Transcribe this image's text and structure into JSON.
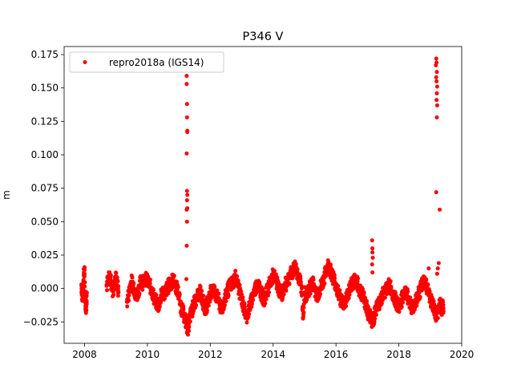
{
  "chart_data": {
    "type": "scatter",
    "title": "P346 V",
    "xlabel": "",
    "ylabel": "m",
    "xlim": [
      2007.35,
      2020.0
    ],
    "ylim": [
      -0.041,
      0.181
    ],
    "xticks": [
      2008,
      2010,
      2012,
      2014,
      2016,
      2018,
      2020
    ],
    "xtick_labels": [
      "2008",
      "2010",
      "2012",
      "2014",
      "2016",
      "2018",
      "2020"
    ],
    "yticks": [
      -0.025,
      0.0,
      0.025,
      0.05,
      0.075,
      0.1,
      0.125,
      0.15,
      0.175
    ],
    "ytick_labels": [
      "−0.025",
      "0.000",
      "0.025",
      "0.050",
      "0.075",
      "0.100",
      "0.125",
      "0.150",
      "0.175"
    ],
    "legend": {
      "position": "upper-left",
      "entries": [
        "repro2018a (IGS14)"
      ]
    },
    "grid": false,
    "series": [
      {
        "name": "repro2018a (IGS14)",
        "color": "#ff0000",
        "marker": "circle",
        "points": [
          [
            2007.9,
            0.003
          ],
          [
            2007.92,
            -0.004
          ],
          [
            2007.94,
            -0.006
          ],
          [
            2007.96,
            0.001
          ],
          [
            2007.98,
            0.012
          ],
          [
            2008.0,
            0.011
          ],
          [
            2008.02,
            -0.008
          ],
          [
            2008.04,
            -0.012
          ],
          [
            2008.05,
            -0.014
          ],
          [
            2008.06,
            -0.009
          ],
          [
            2008.07,
            -0.003
          ],
          [
            2008.7,
            0.002
          ],
          [
            2008.75,
            0.006
          ],
          [
            2008.8,
            0.008
          ],
          [
            2008.85,
            0.004
          ],
          [
            2008.9,
            -0.002
          ],
          [
            2008.95,
            0.003
          ],
          [
            2009.0,
            0.009
          ],
          [
            2009.05,
            0.002
          ],
          [
            2009.08,
            -0.003
          ],
          [
            2009.35,
            -0.01
          ],
          [
            2009.4,
            -0.005
          ],
          [
            2009.45,
            0.002
          ],
          [
            2009.5,
            0.005
          ],
          [
            2009.55,
            0.003
          ],
          [
            2009.6,
            -0.002
          ],
          [
            2009.65,
            -0.006
          ],
          [
            2009.7,
            -0.003
          ],
          [
            2009.75,
            0.002
          ],
          [
            2009.8,
            0.006
          ],
          [
            2009.85,
            0.004
          ],
          [
            2009.9,
            0.008
          ],
          [
            2009.95,
            0.007
          ],
          [
            2010.0,
            0.005
          ],
          [
            2010.05,
            0.003
          ],
          [
            2010.1,
            0.001
          ],
          [
            2010.15,
            -0.002
          ],
          [
            2010.2,
            -0.006
          ],
          [
            2010.25,
            -0.009
          ],
          [
            2010.3,
            -0.011
          ],
          [
            2010.35,
            -0.013
          ],
          [
            2010.4,
            -0.009
          ],
          [
            2010.45,
            -0.005
          ],
          [
            2010.5,
            -0.002
          ],
          [
            2010.55,
            -0.004
          ],
          [
            2010.6,
            -0.001
          ],
          [
            2010.65,
            0.001
          ],
          [
            2010.7,
            0.003
          ],
          [
            2010.75,
            0.004
          ],
          [
            2010.8,
            0.006
          ],
          [
            2010.85,
            0.005
          ],
          [
            2010.9,
            0.002
          ],
          [
            2010.95,
            -0.001
          ],
          [
            2011.0,
            -0.005
          ],
          [
            2011.05,
            -0.012
          ],
          [
            2011.1,
            -0.016
          ],
          [
            2011.15,
            -0.019
          ],
          [
            2011.2,
            -0.023
          ],
          [
            2011.24,
            -0.027
          ],
          [
            2011.28,
            -0.03
          ],
          [
            2011.32,
            -0.026
          ],
          [
            2011.36,
            -0.021
          ],
          [
            2011.4,
            -0.018
          ],
          [
            2011.44,
            -0.015
          ],
          [
            2011.48,
            -0.012
          ],
          [
            2011.52,
            -0.01
          ],
          [
            2011.56,
            -0.008
          ],
          [
            2011.6,
            -0.006
          ],
          [
            2011.64,
            -0.004
          ],
          [
            2011.68,
            -0.003
          ],
          [
            2011.72,
            -0.005
          ],
          [
            2011.76,
            -0.009
          ],
          [
            2011.8,
            -0.012
          ],
          [
            2011.84,
            -0.015
          ],
          [
            2011.88,
            -0.013
          ],
          [
            2011.92,
            -0.01
          ],
          [
            2011.96,
            -0.007
          ],
          [
            2012.0,
            -0.004
          ],
          [
            2012.05,
            -0.002
          ],
          [
            2012.1,
            0.0
          ],
          [
            2012.15,
            -0.003
          ],
          [
            2012.2,
            -0.006
          ],
          [
            2012.25,
            -0.008
          ],
          [
            2012.3,
            -0.012
          ],
          [
            2012.35,
            -0.016
          ],
          [
            2012.4,
            -0.013
          ],
          [
            2012.45,
            -0.009
          ],
          [
            2012.5,
            -0.006
          ],
          [
            2012.55,
            -0.002
          ],
          [
            2012.6,
            0.001
          ],
          [
            2012.65,
            0.003
          ],
          [
            2012.7,
            0.004
          ],
          [
            2012.75,
            0.006
          ],
          [
            2012.8,
            0.009
          ],
          [
            2012.85,
            0.005
          ],
          [
            2012.9,
            0.001
          ],
          [
            2012.95,
            -0.004
          ],
          [
            2013.0,
            -0.008
          ],
          [
            2013.05,
            -0.013
          ],
          [
            2013.1,
            -0.017
          ],
          [
            2013.15,
            -0.021
          ],
          [
            2013.2,
            -0.018
          ],
          [
            2013.25,
            -0.014
          ],
          [
            2013.3,
            -0.01
          ],
          [
            2013.35,
            -0.006
          ],
          [
            2013.4,
            -0.002
          ],
          [
            2013.45,
            0.001
          ],
          [
            2013.5,
            0.003
          ],
          [
            2013.55,
            0.002
          ],
          [
            2013.6,
            -0.002
          ],
          [
            2013.65,
            -0.005
          ],
          [
            2013.7,
            -0.008
          ],
          [
            2013.75,
            -0.006
          ],
          [
            2013.8,
            -0.003
          ],
          [
            2013.85,
            0.001
          ],
          [
            2013.9,
            0.004
          ],
          [
            2013.95,
            0.007
          ],
          [
            2014.0,
            0.01
          ],
          [
            2014.05,
            0.008
          ],
          [
            2014.1,
            0.005
          ],
          [
            2014.15,
            0.002
          ],
          [
            2014.2,
            -0.001
          ],
          [
            2014.25,
            -0.004
          ],
          [
            2014.3,
            -0.003
          ],
          [
            2014.35,
            0.0
          ],
          [
            2014.4,
            0.003
          ],
          [
            2014.45,
            0.006
          ],
          [
            2014.5,
            0.008
          ],
          [
            2014.55,
            0.01
          ],
          [
            2014.6,
            0.012
          ],
          [
            2014.65,
            0.014
          ],
          [
            2014.7,
            0.016
          ],
          [
            2014.75,
            0.013
          ],
          [
            2014.8,
            0.01
          ],
          [
            2014.85,
            0.005
          ],
          [
            2014.9,
            0.002
          ],
          [
            2014.95,
            -0.022
          ],
          [
            2015.0,
            -0.003
          ],
          [
            2015.05,
            -0.006
          ],
          [
            2015.1,
            -0.004
          ],
          [
            2015.15,
            -0.001
          ],
          [
            2015.2,
            0.002
          ],
          [
            2015.25,
            0.004
          ],
          [
            2015.3,
            0.002
          ],
          [
            2015.35,
            -0.002
          ],
          [
            2015.4,
            -0.005
          ],
          [
            2015.45,
            -0.003
          ],
          [
            2015.5,
            0.0
          ],
          [
            2015.55,
            0.003
          ],
          [
            2015.6,
            0.006
          ],
          [
            2015.65,
            0.01
          ],
          [
            2015.7,
            0.014
          ],
          [
            2015.75,
            0.017
          ],
          [
            2015.8,
            0.015
          ],
          [
            2015.85,
            0.012
          ],
          [
            2015.9,
            0.009
          ],
          [
            2015.95,
            0.006
          ],
          [
            2016.0,
            0.002
          ],
          [
            2016.05,
            -0.002
          ],
          [
            2016.1,
            -0.005
          ],
          [
            2016.15,
            -0.008
          ],
          [
            2016.2,
            -0.01
          ],
          [
            2016.25,
            -0.012
          ],
          [
            2016.3,
            -0.009
          ],
          [
            2016.35,
            -0.006
          ],
          [
            2016.4,
            -0.003
          ],
          [
            2016.45,
            0.0
          ],
          [
            2016.5,
            0.003
          ],
          [
            2016.55,
            0.005
          ],
          [
            2016.6,
            0.007
          ],
          [
            2016.65,
            0.005
          ],
          [
            2016.7,
            0.002
          ],
          [
            2016.75,
            -0.001
          ],
          [
            2016.8,
            -0.003
          ],
          [
            2016.85,
            -0.005
          ],
          [
            2016.9,
            -0.008
          ],
          [
            2016.95,
            -0.012
          ],
          [
            2017.0,
            -0.016
          ],
          [
            2017.05,
            -0.02
          ],
          [
            2017.1,
            -0.022
          ],
          [
            2017.15,
            -0.025
          ],
          [
            2017.2,
            -0.022
          ],
          [
            2017.25,
            -0.018
          ],
          [
            2017.3,
            -0.015
          ],
          [
            2017.35,
            -0.012
          ],
          [
            2017.4,
            -0.009
          ],
          [
            2017.45,
            -0.006
          ],
          [
            2017.5,
            -0.004
          ],
          [
            2017.55,
            -0.002
          ],
          [
            2017.6,
            -0.001
          ],
          [
            2017.65,
            0.001
          ],
          [
            2017.7,
            0.002
          ],
          [
            2017.75,
            0.0
          ],
          [
            2017.8,
            -0.003
          ],
          [
            2017.85,
            -0.006
          ],
          [
            2017.9,
            -0.009
          ],
          [
            2017.95,
            -0.012
          ],
          [
            2018.0,
            -0.014
          ],
          [
            2018.05,
            -0.011
          ],
          [
            2018.1,
            -0.008
          ],
          [
            2018.15,
            -0.005
          ],
          [
            2018.2,
            -0.003
          ],
          [
            2018.25,
            -0.004
          ],
          [
            2018.3,
            -0.007
          ],
          [
            2018.35,
            -0.01
          ],
          [
            2018.4,
            -0.013
          ],
          [
            2018.45,
            -0.015
          ],
          [
            2018.5,
            -0.012
          ],
          [
            2018.55,
            -0.009
          ],
          [
            2018.6,
            -0.006
          ],
          [
            2018.65,
            -0.003
          ],
          [
            2018.7,
            0.0
          ],
          [
            2018.75,
            0.003
          ],
          [
            2018.8,
            0.005
          ],
          [
            2018.85,
            0.003
          ],
          [
            2018.9,
            0.0
          ],
          [
            2018.95,
            -0.004
          ],
          [
            2019.0,
            -0.008
          ],
          [
            2019.05,
            -0.011
          ],
          [
            2019.1,
            -0.014
          ],
          [
            2019.15,
            -0.018
          ],
          [
            2019.2,
            -0.022
          ],
          [
            2019.25,
            -0.016
          ],
          [
            2019.3,
            -0.012
          ],
          [
            2019.35,
            -0.015
          ],
          [
            2019.4,
            -0.013
          ],
          [
            2019.42,
            -0.017
          ]
        ],
        "outliers": [
          [
            2011.25,
            0.159
          ],
          [
            2011.25,
            0.153
          ],
          [
            2011.26,
            0.138
          ],
          [
            2011.26,
            0.128
          ],
          [
            2011.27,
            0.118
          ],
          [
            2011.27,
            0.117
          ],
          [
            2011.25,
            0.101
          ],
          [
            2011.26,
            0.073
          ],
          [
            2011.27,
            0.07
          ],
          [
            2011.26,
            0.066
          ],
          [
            2011.27,
            0.06
          ],
          [
            2011.25,
            0.059
          ],
          [
            2011.26,
            0.05
          ],
          [
            2011.25,
            0.032
          ],
          [
            2011.24,
            0.007
          ],
          [
            2017.15,
            0.036
          ],
          [
            2017.16,
            0.03
          ],
          [
            2017.16,
            0.027
          ],
          [
            2017.17,
            0.023
          ],
          [
            2017.15,
            0.018
          ],
          [
            2017.16,
            0.012
          ],
          [
            2019.19,
            0.172
          ],
          [
            2019.2,
            0.169
          ],
          [
            2019.18,
            0.167
          ],
          [
            2019.21,
            0.162
          ],
          [
            2019.19,
            0.158
          ],
          [
            2019.2,
            0.155
          ],
          [
            2019.22,
            0.151
          ],
          [
            2019.21,
            0.146
          ],
          [
            2019.2,
            0.141
          ],
          [
            2019.22,
            0.137
          ],
          [
            2019.21,
            0.128
          ],
          [
            2019.19,
            0.072
          ],
          [
            2019.3,
            0.059
          ],
          [
            2019.27,
            0.019
          ],
          [
            2019.24,
            0.015
          ],
          [
            2019.22,
            0.011
          ],
          [
            2018.95,
            0.015
          ]
        ]
      }
    ]
  }
}
